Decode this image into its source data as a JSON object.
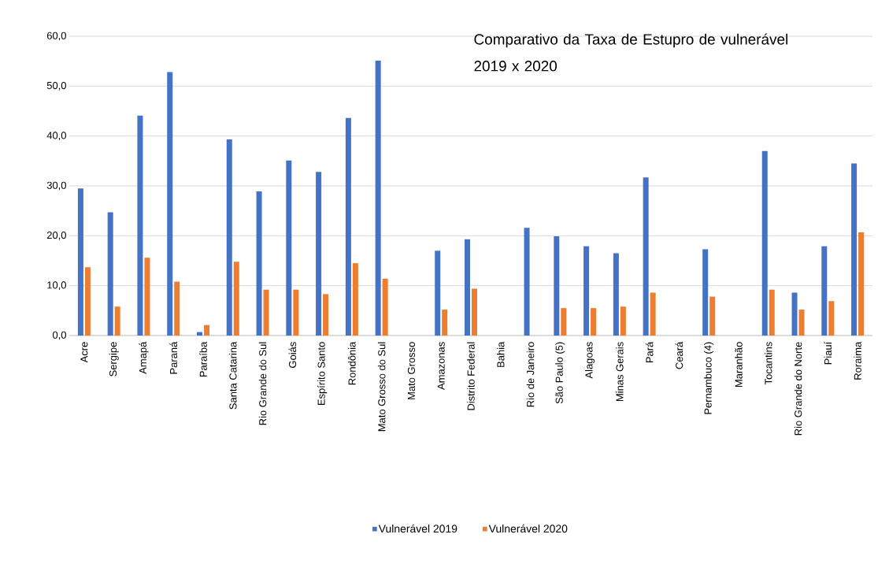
{
  "chart_data": {
    "type": "bar",
    "title": "Comparativo da Taxa de Estupro de vulnerável 2019  x 2020",
    "categories": [
      "Acre",
      "Sergipe",
      "Amapá",
      "Paraná",
      "Paraíba",
      "Santa Catarina",
      "Rio Grande do Sul",
      "Goiás",
      "Espírito Santo",
      "Rondônia",
      "Mato Grosso do Sul",
      "Mato Grosso",
      "Amazonas",
      "Distrito Federal",
      "Bahia",
      "Rio de Janeiro",
      "São Paulo (5)",
      "Alagoas",
      "Minas Gerais",
      "Pará",
      "Ceará",
      "Pernambuco (4)",
      "Maranhão",
      "Tocantins",
      "Rio Grande do Norte",
      "Piauí",
      "Roraima"
    ],
    "series": [
      {
        "name": "Vulnerável 2019",
        "color": "#4472c4",
        "values": [
          29.5,
          24.7,
          44.1,
          52.8,
          0.7,
          39.3,
          28.9,
          35.1,
          32.8,
          43.6,
          55.1,
          null,
          17.0,
          19.3,
          null,
          21.6,
          19.9,
          17.9,
          16.5,
          31.7,
          null,
          17.3,
          null,
          37.0,
          8.6,
          17.9,
          34.5
        ]
      },
      {
        "name": "Vulnerável 2020",
        "color": "#ed7d31",
        "values": [
          13.7,
          5.8,
          15.6,
          10.8,
          2.1,
          14.8,
          9.2,
          9.2,
          8.3,
          14.5,
          11.4,
          null,
          5.2,
          9.4,
          null,
          null,
          5.5,
          5.5,
          5.8,
          8.6,
          null,
          7.8,
          null,
          9.2,
          5.2,
          6.9,
          20.7
        ]
      }
    ],
    "ylim": [
      0,
      60
    ],
    "yticks": [
      {
        "value": 0,
        "label": "0,0"
      },
      {
        "value": 10,
        "label": "10,0"
      },
      {
        "value": 20,
        "label": "20,0"
      },
      {
        "value": 30,
        "label": "30,0"
      },
      {
        "value": 40,
        "label": "40,0"
      },
      {
        "value": 50,
        "label": "50,0"
      },
      {
        "value": 60,
        "label": "60,0"
      }
    ],
    "grid": "y",
    "legend": "bottom"
  }
}
